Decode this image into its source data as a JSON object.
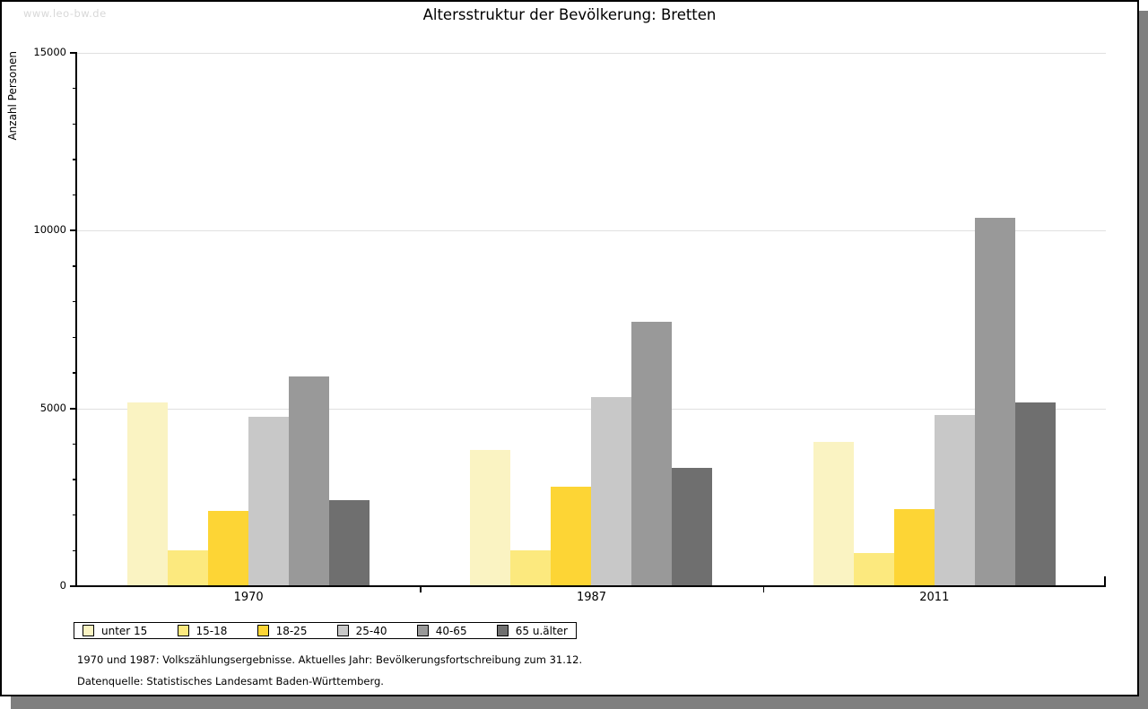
{
  "watermark": "www.leo-bw.de",
  "footnotes": {
    "line1": "1970 und 1987: Volkszählungsergebnisse. Aktuelles Jahr: Bevölkerungsfortschreibung zum 31.12.",
    "line2": "Datenquelle: Statistisches Landesamt Baden-Württemberg."
  },
  "chart_data": {
    "type": "bar",
    "title": "Altersstruktur der Bevölkerung: Bretten",
    "ylabel": "Anzahl Personen",
    "xlabel": "",
    "ylim": [
      0,
      15000
    ],
    "yticks": [
      0,
      5000,
      10000,
      15000
    ],
    "minor_tick_step": 1000,
    "grid": true,
    "legend_position": "bottom",
    "categories": [
      "1970",
      "1987",
      "2011"
    ],
    "series": [
      {
        "name": "unter 15",
        "color": "#FAF3C2",
        "values": [
          5180,
          3830,
          4060
        ]
      },
      {
        "name": "15-18",
        "color": "#FCE97E",
        "values": [
          1010,
          1010,
          940
        ]
      },
      {
        "name": "18-25",
        "color": "#FDD535",
        "values": [
          2120,
          2800,
          2170
        ]
      },
      {
        "name": "25-40",
        "color": "#C8C8C8",
        "values": [
          4770,
          5330,
          4820
        ]
      },
      {
        "name": "40-65",
        "color": "#999999",
        "values": [
          5890,
          7430,
          10350
        ]
      },
      {
        "name": "65 u.älter",
        "color": "#6F6F6F",
        "values": [
          2420,
          3340,
          5170
        ]
      }
    ]
  },
  "colors": {
    "page_shadow": "#7F7F7F",
    "gridline": "#E0E0E0",
    "watermark_text": "#D8D8D8",
    "axis": "#000000"
  }
}
